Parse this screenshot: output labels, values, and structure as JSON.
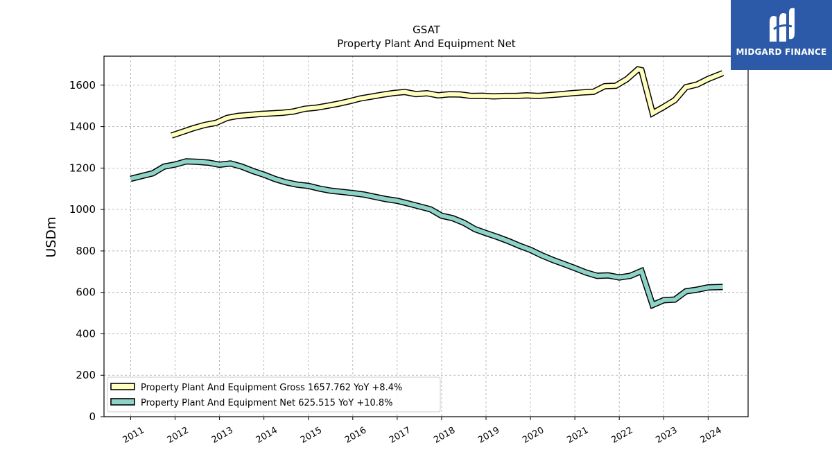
{
  "logo": {
    "text": "MIDGARD FINANCE",
    "icon": "midgard-finance-logo-icon"
  },
  "colors": {
    "gross": "#ffffc0",
    "net": "#8dd3c7",
    "outline": "#000000",
    "logo_bg": "#2c5aa8"
  },
  "chart_data": {
    "type": "line",
    "title": "GSAT",
    "subtitle": "Property Plant And Equipment Net",
    "ylabel": "USDm",
    "xlabel": "",
    "ylim": [
      0,
      1740
    ],
    "xlim": [
      2010.4,
      2024.9
    ],
    "yticks": [
      0,
      200,
      400,
      600,
      800,
      1000,
      1200,
      1400,
      1600
    ],
    "xticks": [
      "2011",
      "2012",
      "2013",
      "2014",
      "2015",
      "2016",
      "2017",
      "2018",
      "2019",
      "2020",
      "2021",
      "2022",
      "2023",
      "2024"
    ],
    "grid": true,
    "legend_position": "lower-left",
    "series": [
      {
        "name": "Property Plant And Equipment Gross",
        "legend": "Property Plant And Equipment Gross  1657.762 YoY +8.4%",
        "x": [
          2011.92,
          2012.17,
          2012.42,
          2012.67,
          2012.92,
          2013.17,
          2013.42,
          2013.67,
          2013.92,
          2014.17,
          2014.42,
          2014.67,
          2014.92,
          2015.17,
          2015.42,
          2015.67,
          2015.92,
          2016.17,
          2016.42,
          2016.67,
          2016.92,
          2017.17,
          2017.42,
          2017.67,
          2017.92,
          2018.17,
          2018.42,
          2018.67,
          2018.92,
          2019.17,
          2019.42,
          2019.67,
          2019.92,
          2020.17,
          2020.42,
          2020.67,
          2020.92,
          2021.17,
          2021.42,
          2021.67,
          2021.92,
          2022.17,
          2022.42,
          2022.5,
          2022.75,
          2023.0,
          2023.25,
          2023.5,
          2023.75,
          2024.0,
          2024.33
        ],
        "values": [
          1357,
          1375,
          1393,
          1408,
          1418,
          1442,
          1452,
          1456,
          1461,
          1464,
          1467,
          1473,
          1486,
          1491,
          1500,
          1510,
          1522,
          1536,
          1545,
          1554,
          1562,
          1567,
          1557,
          1561,
          1551,
          1556,
          1555,
          1548,
          1549,
          1546,
          1548,
          1548,
          1551,
          1548,
          1552,
          1556,
          1561,
          1565,
          1568,
          1595,
          1597,
          1629,
          1676,
          1672,
          1465,
          1495,
          1528,
          1590,
          1603,
          1630,
          1658
        ]
      },
      {
        "name": "Property Plant And Equipment Net",
        "legend": "Property Plant And Equipment Net  625.515 YoY +10.8%",
        "x": [
          2011.0,
          2011.5,
          2011.75,
          2012.0,
          2012.25,
          2012.5,
          2012.75,
          2013.0,
          2013.25,
          2013.5,
          2013.75,
          2014.0,
          2014.25,
          2014.5,
          2014.75,
          2015.0,
          2015.25,
          2015.5,
          2015.75,
          2016.0,
          2016.25,
          2016.5,
          2016.75,
          2017.0,
          2017.25,
          2017.5,
          2017.75,
          2018.0,
          2018.25,
          2018.5,
          2018.75,
          2019.0,
          2019.25,
          2019.5,
          2019.75,
          2020.0,
          2020.25,
          2020.5,
          2020.75,
          2021.0,
          2021.25,
          2021.5,
          2021.75,
          2022.0,
          2022.25,
          2022.5,
          2022.75,
          2023.0,
          2023.25,
          2023.5,
          2023.75,
          2024.0,
          2024.33
        ],
        "values": [
          1148,
          1175,
          1207,
          1217,
          1232,
          1230,
          1226,
          1216,
          1222,
          1207,
          1186,
          1168,
          1147,
          1131,
          1120,
          1114,
          1101,
          1091,
          1085,
          1079,
          1072,
          1061,
          1050,
          1042,
          1029,
          1015,
          1001,
          970,
          958,
          936,
          905,
          886,
          868,
          848,
          825,
          805,
          779,
          757,
          737,
          717,
          696,
          680,
          682,
          672,
          680,
          703,
          539,
          562,
          565,
          605,
          613,
          624,
          626
        ]
      }
    ]
  }
}
